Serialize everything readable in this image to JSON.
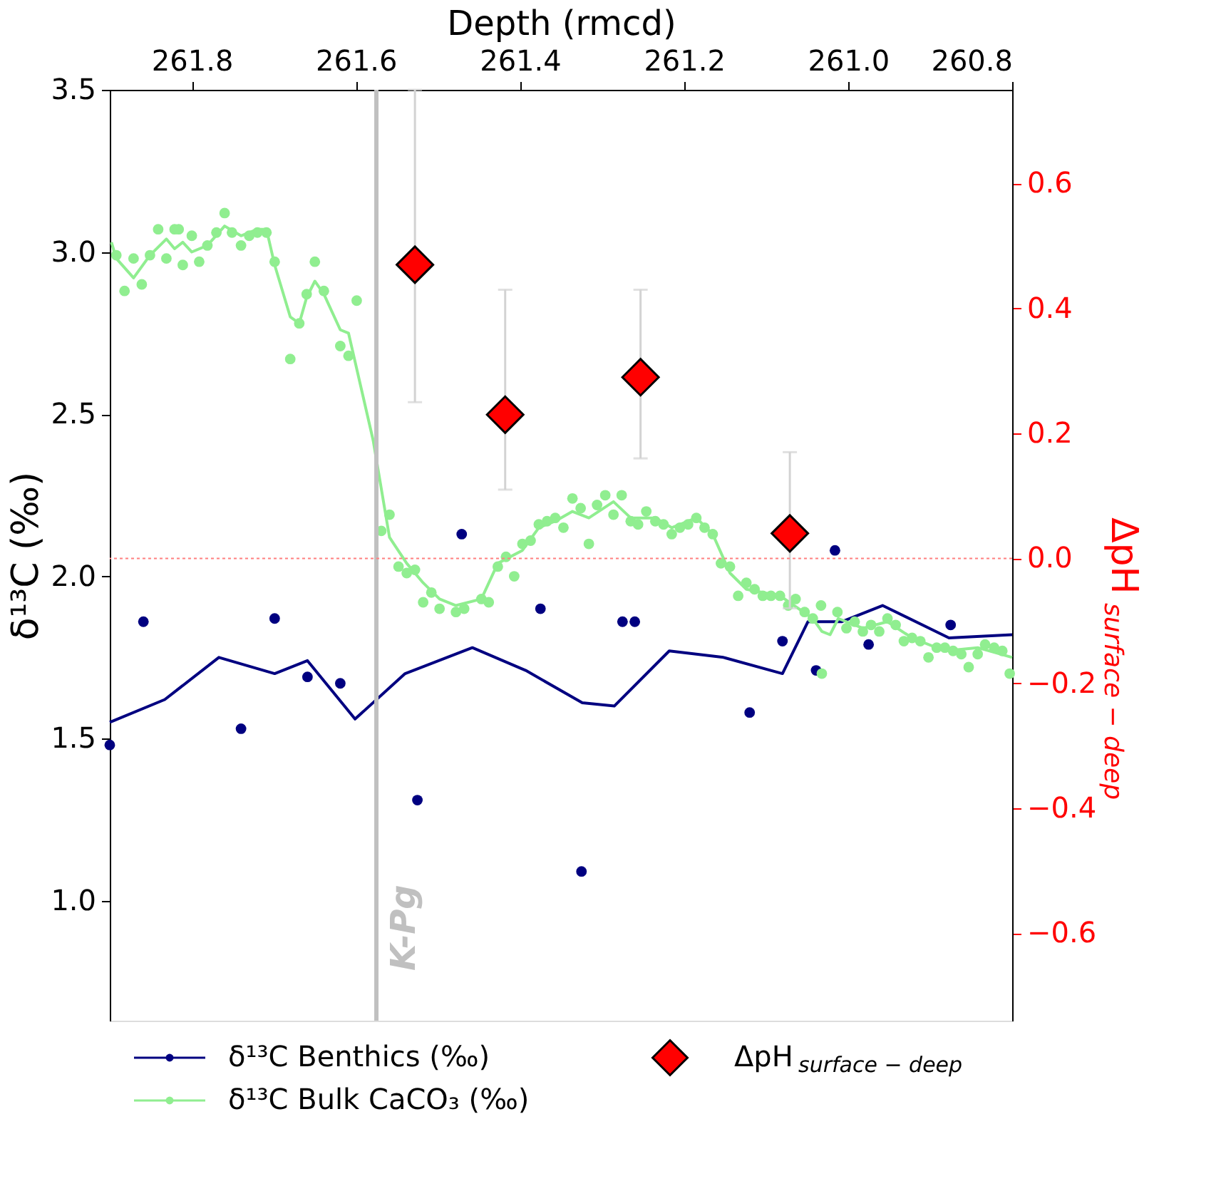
{
  "chart_data": {
    "type": "scatter",
    "xlabel": "Depth (rmcd)",
    "ylabel": "δ¹³C (‰)",
    "y2label": "ΔpH$_{surface − deep}$",
    "xlim": [
      261.9,
      260.8
    ],
    "xticks": [
      261.8,
      261.6,
      261.4,
      261.2,
      {
        "value": 261.0,
        "label": "261.0"
      },
      260.8
    ],
    "ylim": [
      0.63,
      3.5
    ],
    "yticks": [
      {
        "value": 1.0,
        "label": "1.0"
      },
      1.5,
      {
        "value": 2.0,
        "label": "2.0"
      },
      2.5,
      {
        "value": 3.0,
        "label": "3.0"
      },
      3.5
    ],
    "y2lim": [
      -0.74,
      0.75
    ],
    "y2ticks": [
      {
        "value": -0.6,
        "label": "−0.6"
      },
      {
        "value": -0.4,
        "label": "−0.4"
      },
      {
        "value": -0.2,
        "label": "−0.2"
      },
      {
        "value": 0,
        "label": "0.0"
      },
      0.2,
      0.4,
      0.6
    ],
    "legend": "bottom",
    "ref_lines": [
      {
        "axis": "x",
        "value": 261.575,
        "label": "K-Pg",
        "color": "#c0c0c0",
        "line_style": "solid"
      },
      {
        "axis": "y2",
        "value": 0,
        "color": "#ff8080",
        "line_style": "dotted"
      }
    ],
    "series": [
      {
        "name": "δ¹³C Benthics (‰)",
        "marker": "circle",
        "color": "#000080",
        "x": [
          261.9,
          261.859,
          261.74,
          261.699,
          261.659,
          261.619,
          261.525,
          261.471,
          261.375,
          261.325,
          261.275,
          261.26,
          261.12,
          261.08,
          261.039,
          261.016,
          260.975,
          260.875
        ],
        "values": [
          1.48,
          1.86,
          1.53,
          1.87,
          1.69,
          1.67,
          1.31,
          2.13,
          1.9,
          1.09,
          1.86,
          1.86,
          1.58,
          1.8,
          1.71,
          2.08,
          1.79,
          1.85
        ]
      },
      {
        "type": "line",
        "marker": "none",
        "color": "#000080",
        "x": [
          261.9,
          261.833,
          261.767,
          261.699,
          261.659,
          261.601,
          261.54,
          261.458,
          261.393,
          261.324,
          261.285,
          261.218,
          261.152,
          261.08,
          261.049,
          261.008,
          260.958,
          260.877,
          260.8
        ],
        "values": [
          1.55,
          1.62,
          1.75,
          1.7,
          1.74,
          1.56,
          1.7,
          1.78,
          1.71,
          1.61,
          1.6,
          1.77,
          1.75,
          1.7,
          1.86,
          1.86,
          1.91,
          1.81,
          1.82
        ]
      },
      {
        "name": "δ¹³C Bulk CaCO₃ (‰)",
        "marker": "circle",
        "color": "#90ee90",
        "x": [
          261.892,
          261.882,
          261.871,
          261.861,
          261.851,
          261.841,
          261.831,
          261.821,
          261.816,
          261.811,
          261.8,
          261.791,
          261.781,
          261.77,
          261.76,
          261.751,
          261.74,
          261.73,
          261.72,
          261.709,
          261.699,
          261.68,
          261.669,
          261.66,
          261.65,
          261.639,
          261.619,
          261.609,
          261.599,
          261.569,
          261.559,
          261.548,
          261.538,
          261.528,
          261.518,
          261.508,
          261.498,
          261.478,
          261.468,
          261.447,
          261.438,
          261.427,
          261.417,
          261.407,
          261.397,
          261.387,
          261.377,
          261.367,
          261.357,
          261.347,
          261.336,
          261.326,
          261.316,
          261.306,
          261.296,
          261.286,
          261.276,
          261.265,
          261.256,
          261.246,
          261.235,
          261.225,
          261.215,
          261.205,
          261.195,
          261.185,
          261.175,
          261.165,
          261.155,
          261.144,
          261.134,
          261.124,
          261.114,
          261.104,
          261.094,
          261.083,
          261.073,
          261.064,
          261.053,
          261.043,
          261.033,
          261.032,
          261.013,
          261.002,
          260.992,
          260.982,
          260.972,
          260.962,
          260.952,
          260.942,
          260.932,
          260.922,
          260.912,
          260.902,
          260.892,
          260.882,
          260.872,
          260.862,
          260.853,
          260.842,
          260.833,
          260.822,
          260.812,
          260.803
        ],
        "values": [
          2.99,
          2.88,
          2.98,
          2.9,
          2.99,
          3.07,
          2.98,
          3.07,
          3.07,
          2.96,
          3.05,
          2.97,
          3.02,
          3.06,
          3.12,
          3.06,
          3.02,
          3.05,
          3.06,
          3.06,
          2.97,
          2.67,
          2.78,
          2.87,
          2.97,
          2.88,
          2.71,
          2.68,
          2.85,
          2.14,
          2.19,
          2.03,
          2.01,
          2.02,
          1.92,
          1.95,
          1.9,
          1.89,
          1.9,
          1.93,
          1.92,
          2.03,
          2.06,
          2.0,
          2.1,
          2.11,
          2.16,
          2.17,
          2.18,
          2.15,
          2.24,
          2.21,
          2.1,
          2.22,
          2.25,
          2.19,
          2.25,
          2.17,
          2.16,
          2.2,
          2.17,
          2.16,
          2.13,
          2.15,
          2.16,
          2.18,
          2.15,
          2.13,
          2.04,
          2.03,
          1.94,
          1.98,
          1.96,
          1.94,
          1.94,
          1.94,
          1.91,
          1.93,
          1.89,
          1.87,
          1.91,
          1.7,
          1.89,
          1.84,
          1.86,
          1.83,
          1.85,
          1.83,
          1.87,
          1.85,
          1.8,
          1.81,
          1.8,
          1.75,
          1.78,
          1.78,
          1.77,
          1.76,
          1.72,
          1.76,
          1.79,
          1.78,
          1.77,
          1.7
        ]
      },
      {
        "type": "line",
        "marker": "none",
        "color": "#90ee90",
        "x": [
          261.898,
          261.892,
          261.871,
          261.851,
          261.831,
          261.821,
          261.811,
          261.8,
          261.781,
          261.76,
          261.74,
          261.72,
          261.709,
          261.699,
          261.68,
          261.669,
          261.66,
          261.65,
          261.639,
          261.619,
          261.609,
          261.579,
          261.559,
          261.538,
          261.518,
          261.498,
          261.478,
          261.447,
          261.427,
          261.397,
          261.377,
          261.357,
          261.336,
          261.316,
          261.286,
          261.265,
          261.235,
          261.215,
          261.185,
          261.165,
          261.144,
          261.124,
          261.083,
          261.043,
          261.032,
          261.022,
          261.012,
          260.982,
          260.952,
          260.922,
          260.882,
          260.842,
          260.8
        ],
        "values": [
          3.03,
          2.98,
          2.92,
          2.99,
          3.04,
          3.01,
          3.03,
          3.0,
          3.02,
          3.08,
          3.05,
          3.07,
          3.07,
          2.96,
          2.8,
          2.78,
          2.86,
          2.91,
          2.87,
          2.76,
          2.75,
          2.42,
          2.12,
          2.04,
          1.98,
          1.93,
          1.91,
          1.93,
          2.04,
          2.08,
          2.15,
          2.17,
          2.2,
          2.18,
          2.23,
          2.18,
          2.18,
          2.15,
          2.18,
          2.13,
          2.01,
          1.96,
          1.94,
          1.87,
          1.83,
          1.82,
          1.87,
          1.84,
          1.86,
          1.81,
          1.77,
          1.78,
          1.75
        ]
      },
      {
        "name": "ΔpH$_{surface − deep}$",
        "marker": "diamond",
        "axis": "y2",
        "color": "#ff0000",
        "x": [
          261.528,
          261.418,
          261.253,
          261.071
        ],
        "values": [
          0.47,
          0.23,
          0.29,
          0.04
        ],
        "errors": [
          [
            0.25,
            0.75
          ],
          [
            0.11,
            0.43
          ],
          [
            0.16,
            0.43
          ],
          [
            -0.08,
            0.17
          ]
        ]
      }
    ]
  }
}
